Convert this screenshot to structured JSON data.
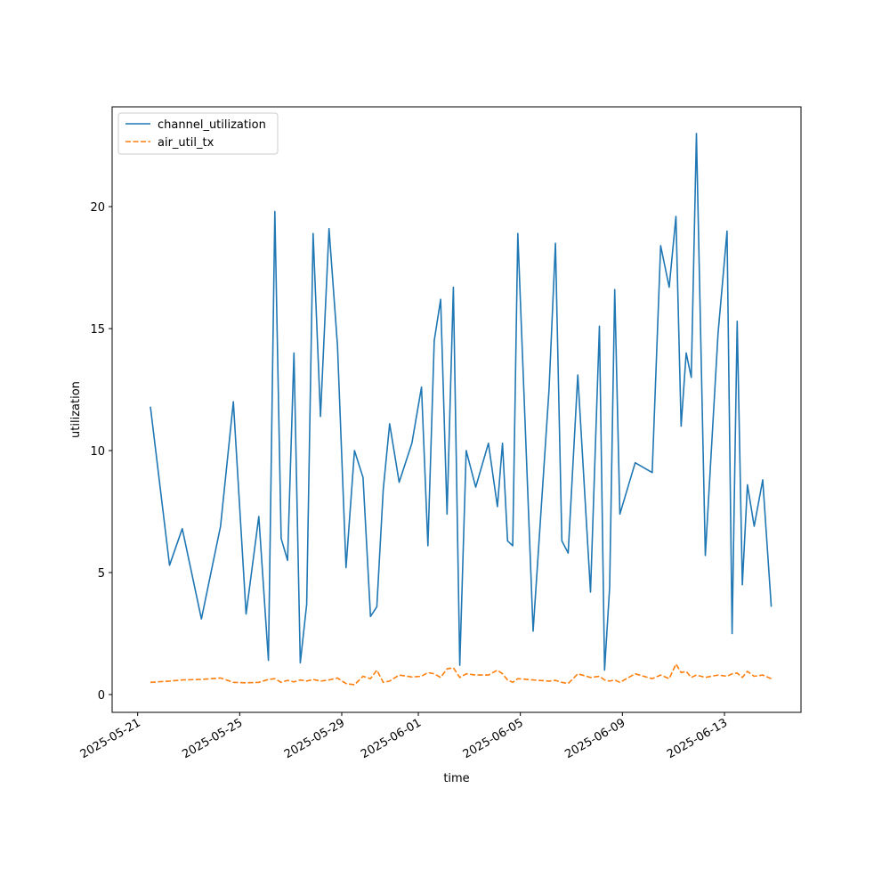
{
  "chart_data": {
    "type": "line",
    "x": [
      "2025-05-21",
      "2025-05-22",
      "2025-05-22",
      "2025-05-23",
      "2025-05-24",
      "2025-05-24",
      "2025-05-25",
      "2025-05-25",
      "2025-05-26",
      "2025-05-26",
      "2025-05-26",
      "2025-05-26",
      "2025-05-27",
      "2025-05-27",
      "2025-05-27",
      "2025-05-27",
      "2025-05-28",
      "2025-05-28",
      "2025-05-28",
      "2025-05-29",
      "2025-05-29",
      "2025-05-29",
      "2025-05-30",
      "2025-05-30",
      "2025-05-30",
      "2025-05-30",
      "2025-05-31",
      "2025-05-31",
      "2025-06-01",
      "2025-06-01",
      "2025-06-01",
      "2025-06-01",
      "2025-06-02",
      "2025-06-02",
      "2025-06-02",
      "2025-06-02",
      "2025-06-03",
      "2025-06-03",
      "2025-06-04",
      "2025-06-04",
      "2025-06-04",
      "2025-06-04",
      "2025-06-04",
      "2025-06-05",
      "2025-06-06",
      "2025-06-06",
      "2025-06-06",
      "2025-06-06",
      "2025-06-07",
      "2025-06-07",
      "2025-06-08",
      "2025-06-08",
      "2025-06-08",
      "2025-06-08",
      "2025-06-08",
      "2025-06-09",
      "2025-06-10",
      "2025-06-10",
      "2025-06-10",
      "2025-06-11",
      "2025-06-11",
      "2025-06-11",
      "2025-06-11",
      "2025-06-11",
      "2025-06-12",
      "2025-06-12",
      "2025-06-13",
      "2025-06-13",
      "2025-06-13",
      "2025-06-13",
      "2025-06-13",
      "2025-06-14",
      "2025-06-14",
      "2025-06-14"
    ],
    "series": [
      {
        "name": "channel_utilization",
        "color": "#1f77b4",
        "dash": false,
        "values": [
          11.8,
          5.3,
          6.8,
          3.1,
          6.9,
          12.0,
          3.3,
          7.3,
          1.4,
          19.8,
          6.4,
          5.5,
          14.0,
          1.3,
          3.7,
          18.9,
          11.4,
          19.1,
          14.3,
          5.2,
          10.0,
          8.9,
          3.2,
          3.6,
          8.4,
          11.1,
          8.7,
          10.3,
          12.6,
          6.1,
          14.5,
          16.2,
          7.4,
          16.7,
          1.2,
          10.0,
          8.5,
          10.3,
          7.7,
          10.3,
          6.3,
          6.1,
          18.9,
          2.6,
          12.5,
          18.5,
          6.3,
          5.8,
          13.1,
          4.2,
          15.1,
          1.0,
          4.4,
          16.6,
          7.4,
          9.5,
          9.1,
          18.4,
          16.7,
          19.6,
          11.0,
          14.0,
          13.0,
          23.0,
          5.7,
          14.8,
          19.0,
          2.5,
          15.3,
          4.5,
          8.6,
          6.9,
          8.8,
          3.6
        ]
      },
      {
        "name": "air_util_tx",
        "color": "#ff7f0e",
        "dash": true,
        "values": [
          0.5,
          0.55,
          0.6,
          0.62,
          0.68,
          0.5,
          0.48,
          0.5,
          0.62,
          0.65,
          0.5,
          0.58,
          0.52,
          0.6,
          0.55,
          0.62,
          0.55,
          0.6,
          0.68,
          0.45,
          0.4,
          0.75,
          0.65,
          1.0,
          0.5,
          0.55,
          0.8,
          0.72,
          0.75,
          0.9,
          0.85,
          0.7,
          1.05,
          1.1,
          0.7,
          0.85,
          0.8,
          0.8,
          1.0,
          0.85,
          0.6,
          0.5,
          0.65,
          0.6,
          0.55,
          0.58,
          0.5,
          0.45,
          0.85,
          0.7,
          0.75,
          0.6,
          0.55,
          0.6,
          0.5,
          0.85,
          0.65,
          0.8,
          0.65,
          1.25,
          0.9,
          0.95,
          0.7,
          0.8,
          0.7,
          0.8,
          0.75,
          0.85,
          0.88,
          0.7,
          0.95,
          0.75,
          0.8,
          0.65
        ]
      }
    ],
    "xlabel": "time",
    "ylabel": "utilization",
    "xlim": [
      "2025-05-20",
      "2025-06-16"
    ],
    "xticks": [
      "2025-05-21",
      "2025-05-25",
      "2025-05-29",
      "2025-06-01",
      "2025-06-05",
      "2025-06-09",
      "2025-06-13"
    ],
    "ylim": [
      -0.73,
      24.09
    ],
    "yticks": [
      0,
      5,
      10,
      15,
      20
    ],
    "legend": "upper left",
    "grid": false
  }
}
